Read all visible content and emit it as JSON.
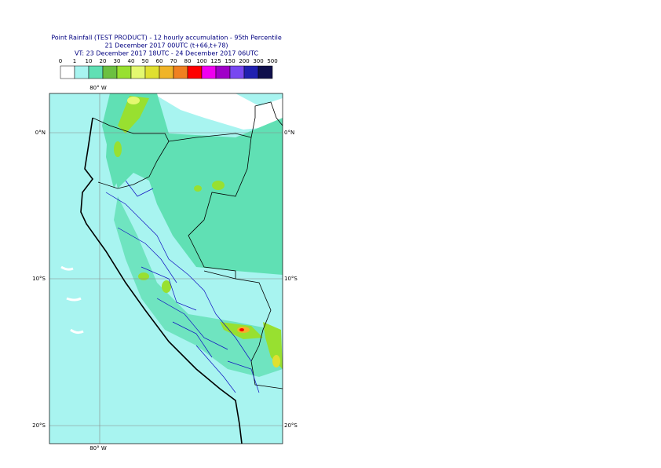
{
  "header": {
    "title": "Point Rainfall (TEST PRODUCT) - 12 hourly accumulation - 95th Percentile",
    "base_time": "21 December 2017 00UTC (t+66,t+78)",
    "valid_time": "VT: 23 December 2017 18UTC - 24 December 2017 06UTC"
  },
  "legend": {
    "thresholds": [
      0,
      1,
      10,
      20,
      30,
      40,
      50,
      60,
      70,
      80,
      100,
      125,
      150,
      200,
      300,
      500
    ],
    "colors": [
      "#ffffff",
      "#a8f4f0",
      "#60e0b4",
      "#6cc040",
      "#98e030",
      "#e4f870",
      "#e0e030",
      "#f0b428",
      "#f08020",
      "#ff0000",
      "#f000f0",
      "#a000c8",
      "#7848f0",
      "#2020b0",
      "#10104c"
    ]
  },
  "map": {
    "lon_label": "80° W",
    "lat_labels": [
      "0°N",
      "10°S",
      "20°S"
    ]
  }
}
